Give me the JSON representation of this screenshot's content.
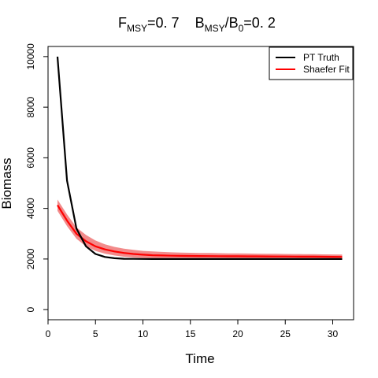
{
  "chart_data": {
    "type": "line",
    "title": {
      "f_base": "F",
      "f_sub": "MSY",
      "f_val": "=0. 7",
      "b_base": "B",
      "b_sub": "MSY",
      "b_slash": "/B",
      "b_sub2": "0",
      "b_val": "=0. 2"
    },
    "xlabel": "Time",
    "ylabel": "Biomass",
    "xlim": [
      0,
      32.2
    ],
    "ylim": [
      -400,
      10400
    ],
    "xticks": [
      0,
      5,
      10,
      15,
      20,
      25,
      30
    ],
    "xtick_labels": [
      "0",
      "5",
      "10",
      "15",
      "20",
      "25",
      "30"
    ],
    "yticks": [
      0,
      2000,
      4000,
      6000,
      8000,
      10000
    ],
    "ytick_labels": [
      "0",
      "2000",
      "4000",
      "6000",
      "8000",
      "10000"
    ],
    "legend": {
      "position": "top-right"
    },
    "series": [
      {
        "name": "PT Truth",
        "color": "#000000",
        "x": [
          1,
          2,
          3,
          4,
          5,
          6,
          7,
          8,
          9,
          10,
          11,
          12,
          13,
          14,
          15,
          16,
          17,
          18,
          19,
          20,
          21,
          22,
          23,
          24,
          25,
          26,
          27,
          28,
          29,
          30,
          31
        ],
        "y": [
          10000,
          5100,
          3200,
          2500,
          2200,
          2080,
          2030,
          2010,
          2005,
          2002,
          2001,
          2000,
          2000,
          2000,
          2000,
          2000,
          2000,
          2000,
          2000,
          2000,
          2000,
          2000,
          2000,
          2000,
          2000,
          2000,
          2000,
          2000,
          2000,
          2000,
          2000
        ]
      },
      {
        "name": "Shaefer Fit",
        "color": "#ff0000",
        "band_color": "#f28b8b",
        "x": [
          1,
          2,
          3,
          4,
          5,
          6,
          7,
          8,
          9,
          10,
          11,
          12,
          13,
          14,
          15,
          16,
          17,
          18,
          19,
          20,
          21,
          22,
          23,
          24,
          25,
          26,
          27,
          28,
          29,
          30,
          31
        ],
        "y": [
          4130,
          3520,
          3000,
          2700,
          2500,
          2380,
          2300,
          2240,
          2200,
          2170,
          2150,
          2140,
          2130,
          2125,
          2120,
          2118,
          2115,
          2112,
          2110,
          2108,
          2106,
          2104,
          2102,
          2100,
          2098,
          2096,
          2094,
          2092,
          2090,
          2088,
          2085
        ],
        "lower": [
          3900,
          3300,
          2800,
          2500,
          2320,
          2210,
          2140,
          2090,
          2060,
          2040,
          2030,
          2020,
          2015,
          2010,
          2008,
          2006,
          2004,
          2002,
          2000,
          1998,
          1996,
          1994,
          1992,
          1990,
          1988,
          1986,
          1984,
          1982,
          1980,
          1978,
          1975
        ],
        "upper": [
          4350,
          3760,
          3250,
          2950,
          2730,
          2580,
          2480,
          2410,
          2360,
          2320,
          2300,
          2280,
          2265,
          2255,
          2245,
          2240,
          2235,
          2230,
          2225,
          2220,
          2216,
          2212,
          2208,
          2204,
          2200,
          2196,
          2192,
          2188,
          2184,
          2180,
          2176
        ]
      }
    ]
  }
}
